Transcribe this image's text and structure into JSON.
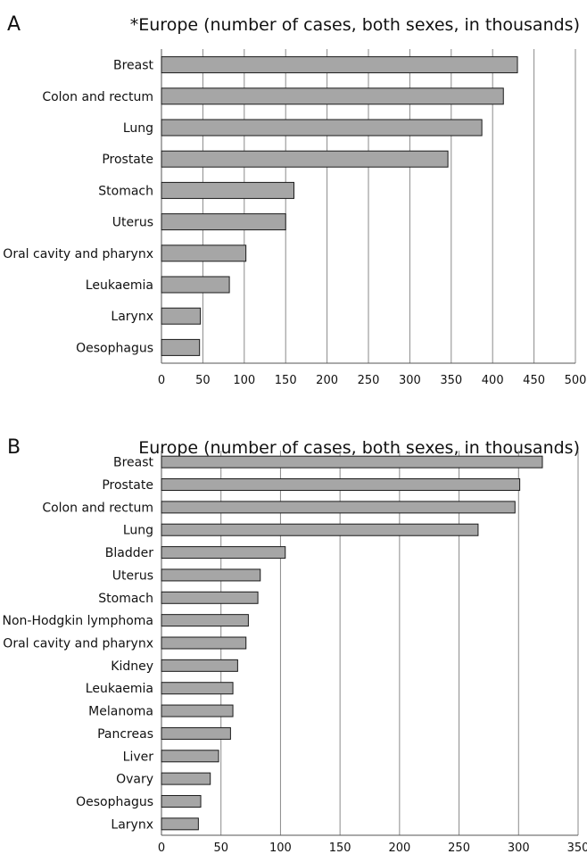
{
  "chart_data": [
    {
      "type": "bar",
      "orientation": "horizontal",
      "panel_label": "A",
      "title": "*Europe (number of cases, both sexes, in thousands)",
      "categories": [
        "Breast",
        "Colon and rectum",
        "Lung",
        "Prostate",
        "Stomach",
        "Uterus",
        "Oral cavity and pharynx",
        "Leukaemia",
        "Larynx",
        "Oesophagus"
      ],
      "values": [
        430,
        413,
        387,
        346,
        160,
        150,
        102,
        82,
        47,
        46
      ],
      "xlim": [
        0,
        500
      ],
      "xticks": [
        "0",
        "50",
        "100",
        "150",
        "200",
        "250",
        "300",
        "350",
        "400",
        "450",
        "500"
      ],
      "grid": "vertical",
      "bar_color": "#a6a6a6"
    },
    {
      "type": "bar",
      "orientation": "horizontal",
      "panel_label": "B",
      "title": "Europe (number of cases, both sexes, in thousands)",
      "categories": [
        "Breast",
        "Prostate",
        "Colon and rectum",
        "Lung",
        "Bladder",
        "Uterus",
        "Stomach",
        "Non-Hodgkin lymphoma",
        "Oral cavity and pharynx",
        "Kidney",
        "Leukaemia",
        "Melanoma",
        "Pancreas",
        "Liver",
        "Ovary",
        "Oesophagus",
        "Larynx"
      ],
      "values": [
        320,
        301,
        297,
        266,
        104,
        83,
        81,
        73,
        71,
        64,
        60,
        60,
        58,
        48,
        41,
        33,
        31
      ],
      "xlim": [
        0,
        350
      ],
      "xticks": [
        "0",
        "50",
        "100",
        "150",
        "200",
        "250",
        "300",
        "350"
      ],
      "grid": "vertical",
      "bar_color": "#a6a6a6"
    }
  ]
}
